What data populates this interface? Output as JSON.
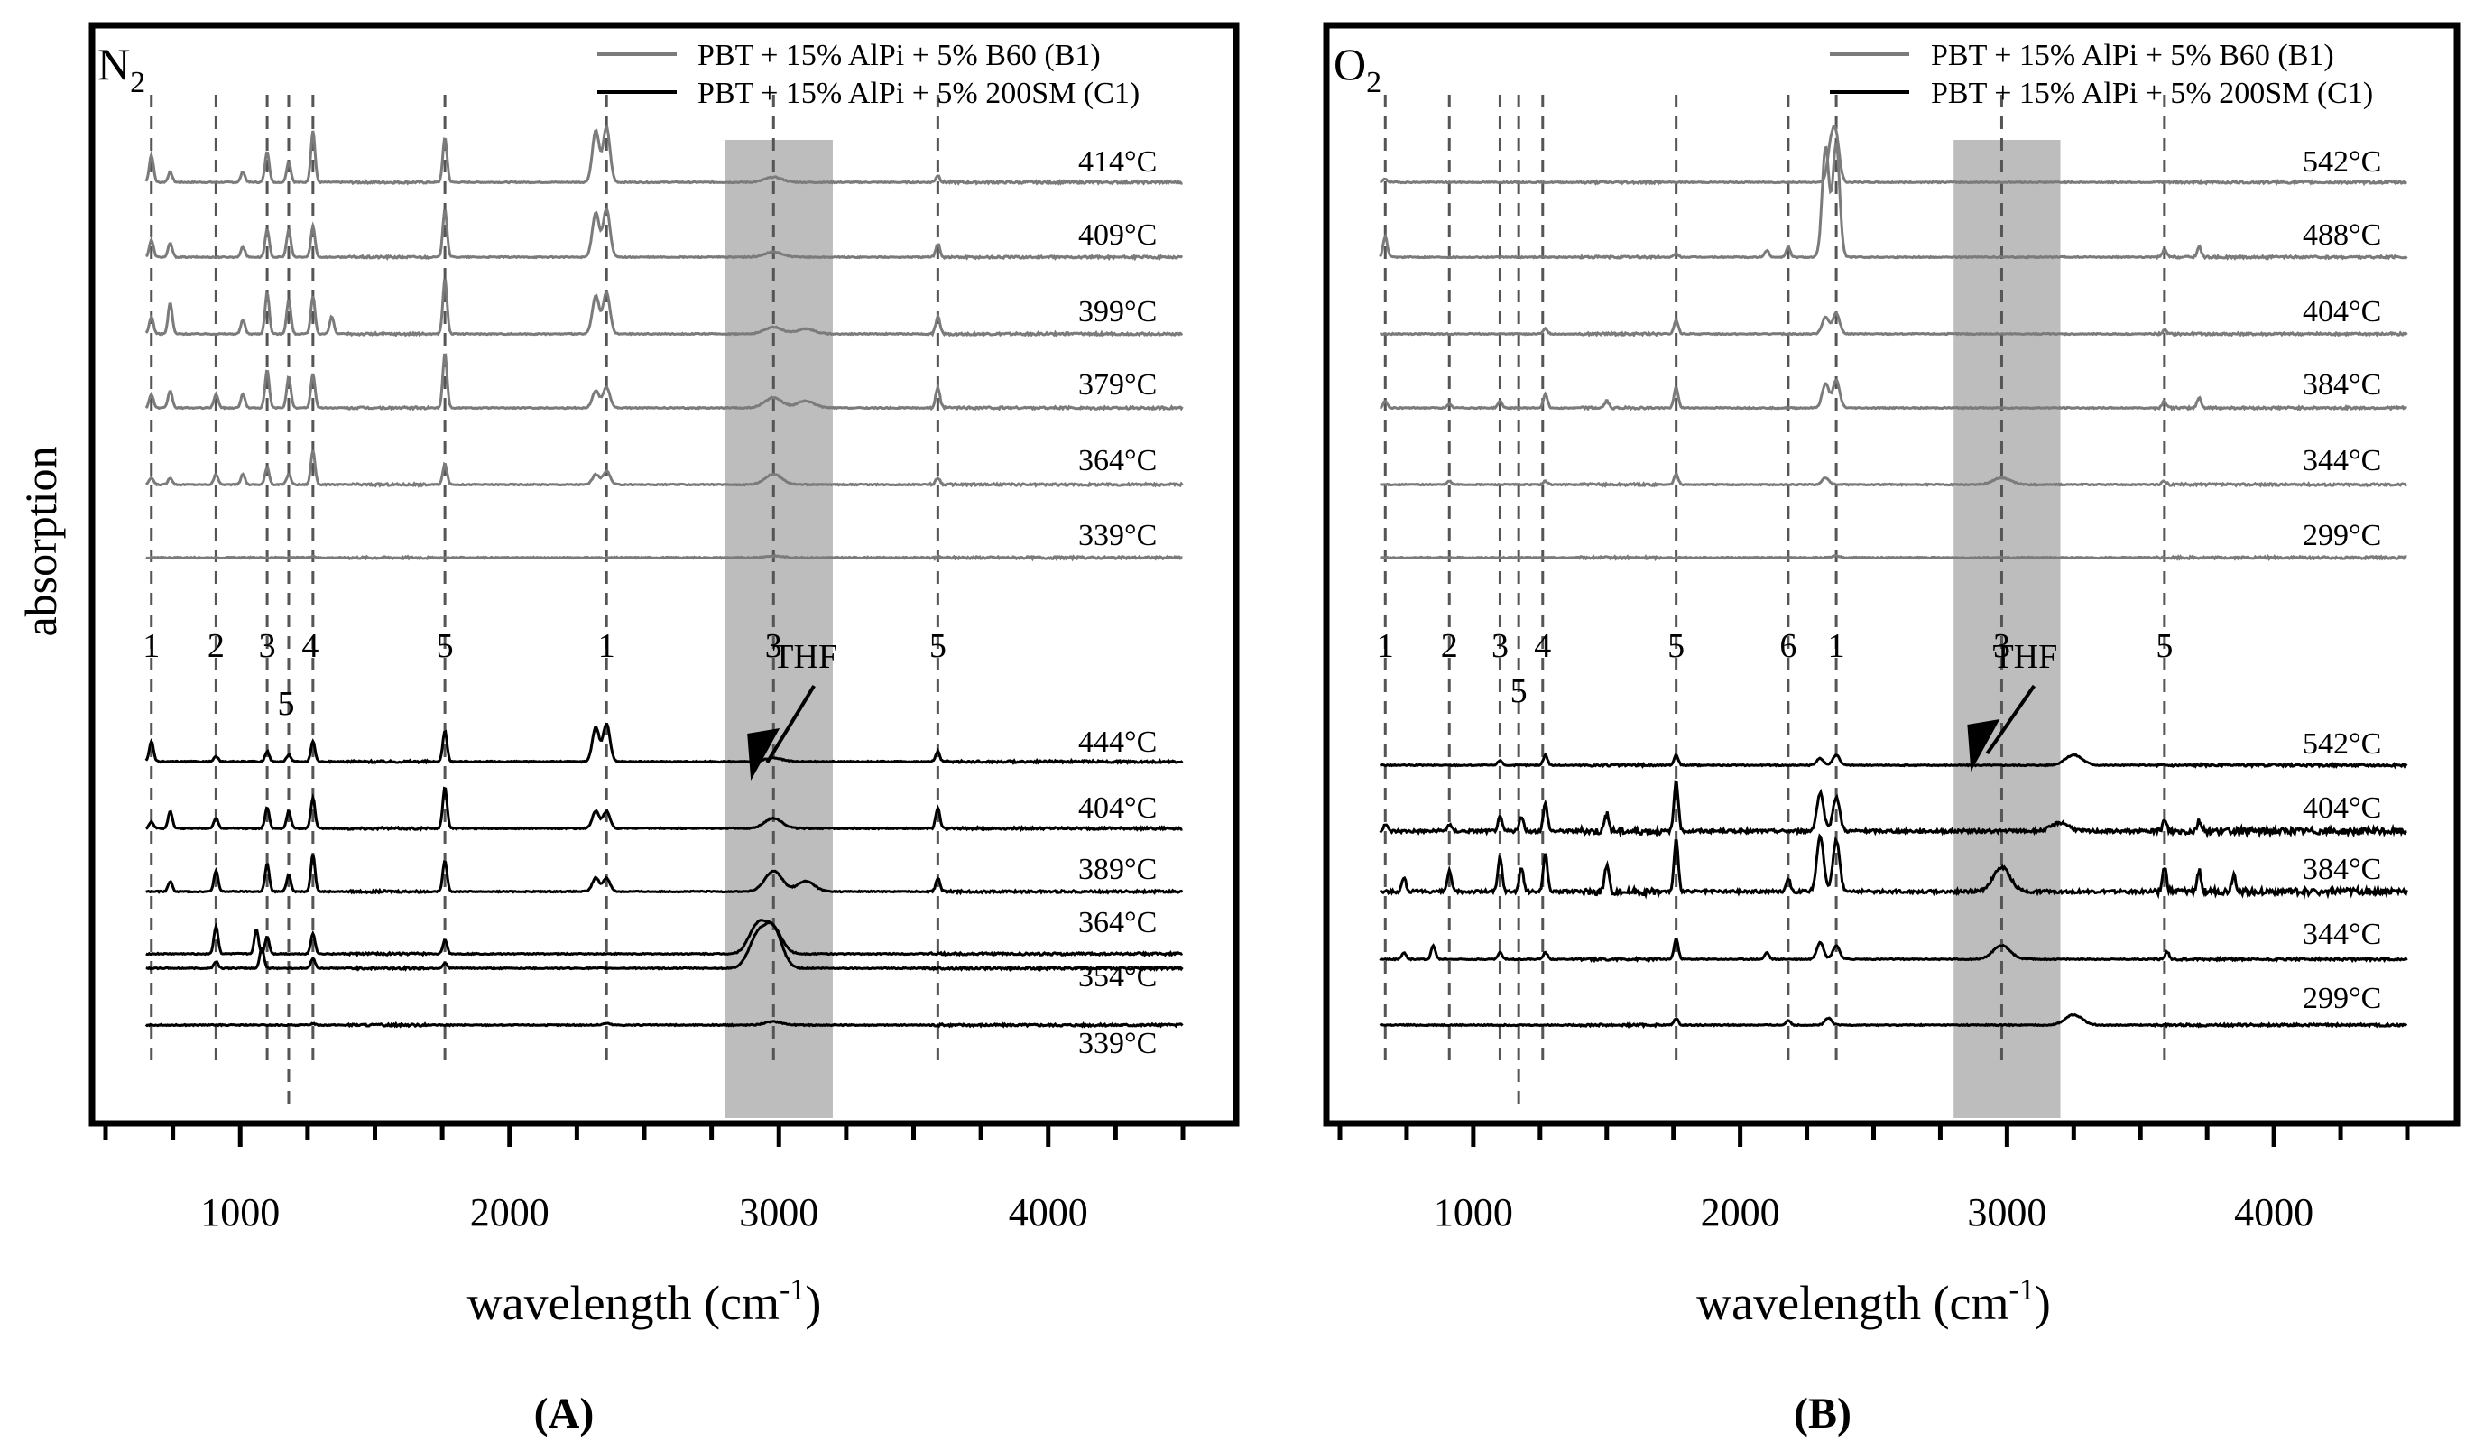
{
  "figure": {
    "ylabel": "absorption",
    "panel_labels": [
      "(A)",
      "(B)"
    ],
    "colors": {
      "b1": "#7b7b7b",
      "c1": "#000000",
      "band": "#bdbdbd",
      "frame": "#000000"
    }
  },
  "chart_data": [
    {
      "type": "line",
      "id": "A",
      "panel_label": "(A)",
      "atmosphere": {
        "main": "N",
        "sub": "2"
      },
      "xlabel": {
        "main": "wavelength (cm",
        "sup": "-1",
        "tail": ")"
      },
      "xlim": [
        500,
        4500
      ],
      "xticks": [
        1000,
        2000,
        3000,
        4000
      ],
      "xtick_labels": [
        "1000",
        "2000",
        "3000",
        "4000"
      ],
      "shaded_band": [
        2800,
        3200
      ],
      "legend": [
        "PBT + 15% AlPi + 5% B60 (B1)",
        "PBT + 15% AlPi + 5% 200SM (C1)"
      ],
      "legend_position": "top-right",
      "reference_lines": [
        670,
        910,
        1100,
        1180,
        1270,
        1760,
        2360,
        2980,
        3590
      ],
      "band_markers": [
        {
          "x": 670,
          "label": "1",
          "row": 1
        },
        {
          "x": 910,
          "label": "2",
          "row": 1
        },
        {
          "x": 1100,
          "label": "3",
          "row": 1
        },
        {
          "x": 1260,
          "label": "4",
          "row": 1
        },
        {
          "x": 1170,
          "label": "5",
          "row": 2
        },
        {
          "x": 1760,
          "label": "5",
          "row": 1
        },
        {
          "x": 2360,
          "label": "1",
          "row": 1
        },
        {
          "x": 2980,
          "label": "3",
          "row": 1
        },
        {
          "x": 3590,
          "label": "5",
          "row": 1
        }
      ],
      "annotation": {
        "text": "THF",
        "x": 3030,
        "ytext": 0.605,
        "yarrow": 0.735
      },
      "series": [
        {
          "group": "B1",
          "label": "414°C",
          "peaks": [
            [
              670,
              0.8
            ],
            [
              740,
              0.3
            ],
            [
              1010,
              0.3
            ],
            [
              1100,
              0.9
            ],
            [
              1180,
              0.6
            ],
            [
              1270,
              1.5
            ],
            [
              1760,
              1.3
            ],
            [
              2320,
              1.5
            ],
            [
              2360,
              1.6
            ],
            [
              2980,
              0.15
            ],
            [
              3590,
              0.2
            ]
          ]
        },
        {
          "group": "B1",
          "label": "409°C",
          "peaks": [
            [
              670,
              0.5
            ],
            [
              740,
              0.4
            ],
            [
              1010,
              0.3
            ],
            [
              1100,
              0.8
            ],
            [
              1180,
              0.8
            ],
            [
              1270,
              0.9
            ],
            [
              1760,
              1.4
            ],
            [
              2320,
              1.3
            ],
            [
              2360,
              1.4
            ],
            [
              2980,
              0.15
            ],
            [
              3590,
              0.4
            ]
          ]
        },
        {
          "group": "B1",
          "label": "399°C",
          "peaks": [
            [
              670,
              0.5
            ],
            [
              740,
              0.9
            ],
            [
              1010,
              0.4
            ],
            [
              1100,
              1.2
            ],
            [
              1180,
              1.0
            ],
            [
              1270,
              1.1
            ],
            [
              1340,
              0.5
            ],
            [
              1760,
              1.6
            ],
            [
              2320,
              1.1
            ],
            [
              2360,
              1.2
            ],
            [
              2980,
              0.2
            ],
            [
              3100,
              0.15
            ],
            [
              3590,
              0.5
            ]
          ]
        },
        {
          "group": "B1",
          "label": "379°C",
          "peaks": [
            [
              670,
              0.4
            ],
            [
              740,
              0.5
            ],
            [
              910,
              0.4
            ],
            [
              1010,
              0.4
            ],
            [
              1100,
              1.1
            ],
            [
              1180,
              0.9
            ],
            [
              1270,
              1.0
            ],
            [
              1760,
              1.6
            ],
            [
              2320,
              0.5
            ],
            [
              2360,
              0.6
            ],
            [
              2980,
              0.3
            ],
            [
              3100,
              0.2
            ],
            [
              3590,
              0.6
            ]
          ]
        },
        {
          "group": "B1",
          "label": "364°C",
          "peaks": [
            [
              670,
              0.2
            ],
            [
              740,
              0.2
            ],
            [
              910,
              0.3
            ],
            [
              1010,
              0.3
            ],
            [
              1100,
              0.5
            ],
            [
              1180,
              0.3
            ],
            [
              1270,
              1.0
            ],
            [
              1760,
              0.6
            ],
            [
              2320,
              0.3
            ],
            [
              2360,
              0.4
            ],
            [
              2980,
              0.3
            ],
            [
              3590,
              0.2
            ]
          ]
        },
        {
          "group": "B1",
          "label": "339°C",
          "peaks": [
            [
              1270,
              0.05
            ],
            [
              2980,
              0.05
            ]
          ]
        },
        {
          "group": "C1",
          "label": "444°C",
          "peaks": [
            [
              670,
              0.6
            ],
            [
              910,
              0.15
            ],
            [
              1100,
              0.3
            ],
            [
              1180,
              0.2
            ],
            [
              1270,
              0.6
            ],
            [
              1760,
              0.9
            ],
            [
              2320,
              1.0
            ],
            [
              2360,
              1.1
            ],
            [
              2980,
              0.1
            ],
            [
              3590,
              0.3
            ]
          ]
        },
        {
          "group": "C1",
          "label": "404°C",
          "peaks": [
            [
              670,
              0.2
            ],
            [
              740,
              0.5
            ],
            [
              910,
              0.3
            ],
            [
              1100,
              0.6
            ],
            [
              1180,
              0.5
            ],
            [
              1270,
              0.9
            ],
            [
              1760,
              1.2
            ],
            [
              2320,
              0.5
            ],
            [
              2360,
              0.5
            ],
            [
              2980,
              0.3
            ],
            [
              3590,
              0.6
            ]
          ]
        },
        {
          "group": "C1",
          "label": "389°C",
          "peaks": [
            [
              740,
              0.3
            ],
            [
              910,
              0.6
            ],
            [
              1100,
              0.8
            ],
            [
              1180,
              0.5
            ],
            [
              1270,
              1.1
            ],
            [
              1760,
              0.9
            ],
            [
              2320,
              0.4
            ],
            [
              2360,
              0.4
            ],
            [
              2980,
              0.6
            ],
            [
              3100,
              0.3
            ],
            [
              3590,
              0.4
            ]
          ]
        },
        {
          "group": "C1",
          "label": "364°C",
          "peaks": [
            [
              910,
              0.8
            ],
            [
              1060,
              0.7
            ],
            [
              1100,
              0.5
            ],
            [
              1270,
              0.6
            ],
            [
              1760,
              0.4
            ],
            [
              2920,
              0.8
            ],
            [
              2980,
              0.7
            ]
          ]
        },
        {
          "group": "C1",
          "label": "354°C",
          "peaks": [
            [
              910,
              0.2
            ],
            [
              1080,
              0.6
            ],
            [
              1270,
              0.3
            ],
            [
              1760,
              0.15
            ],
            [
              2920,
              0.9
            ],
            [
              2980,
              1.1
            ]
          ]
        },
        {
          "group": "C1",
          "label": "339°C",
          "peaks": [
            [
              1270,
              0.05
            ],
            [
              2360,
              0.05
            ],
            [
              2980,
              0.1
            ]
          ]
        }
      ]
    },
    {
      "type": "line",
      "id": "B",
      "panel_label": "(B)",
      "atmosphere": {
        "main": "O",
        "sub": "2"
      },
      "xlabel": {
        "main": "wavelength (cm",
        "sup": "-1",
        "tail": ")"
      },
      "xlim": [
        500,
        4500
      ],
      "xticks": [
        1000,
        2000,
        3000,
        4000
      ],
      "xtick_labels": [
        "1000",
        "2000",
        "3000",
        "4000"
      ],
      "shaded_band": [
        2800,
        3200
      ],
      "legend": [
        "PBT + 15% AlPi + 5% B60 (B1)",
        "PBT + 15% AlPi + 5% 200SM (C1)"
      ],
      "legend_position": "top-right",
      "reference_lines": [
        670,
        910,
        1100,
        1170,
        1260,
        1760,
        2180,
        2360,
        2980,
        3590
      ],
      "band_markers": [
        {
          "x": 670,
          "label": "1",
          "row": 1
        },
        {
          "x": 910,
          "label": "2",
          "row": 1
        },
        {
          "x": 1100,
          "label": "3",
          "row": 1
        },
        {
          "x": 1260,
          "label": "4",
          "row": 1
        },
        {
          "x": 1170,
          "label": "5",
          "row": 2
        },
        {
          "x": 1760,
          "label": "5",
          "row": 1
        },
        {
          "x": 2180,
          "label": "6",
          "row": 1
        },
        {
          "x": 2360,
          "label": "1",
          "row": 1
        },
        {
          "x": 2980,
          "label": "3",
          "row": 1
        },
        {
          "x": 3590,
          "label": "5",
          "row": 1
        }
      ],
      "annotation": {
        "text": "THF",
        "x": 3000,
        "ytext": 0.605,
        "yarrow": 0.725
      },
      "series": [
        {
          "group": "B1",
          "label": "542°C",
          "peaks": [
            [
              670,
              0.1
            ],
            [
              2340,
              1.0
            ],
            [
              2360,
              1.2
            ]
          ]
        },
        {
          "group": "B1",
          "label": "488°C",
          "peaks": [
            [
              670,
              0.6
            ],
            [
              1760,
              0.1
            ],
            [
              2100,
              0.2
            ],
            [
              2180,
              0.3
            ],
            [
              2320,
              3.2
            ],
            [
              2360,
              3.3
            ],
            [
              3590,
              0.2
            ],
            [
              3720,
              0.3
            ]
          ]
        },
        {
          "group": "B1",
          "label": "404°C",
          "peaks": [
            [
              1270,
              0.15
            ],
            [
              1760,
              0.4
            ],
            [
              2320,
              0.5
            ],
            [
              2360,
              0.6
            ],
            [
              3590,
              0.1
            ]
          ]
        },
        {
          "group": "B1",
          "label": "384°C",
          "peaks": [
            [
              670,
              0.2
            ],
            [
              910,
              0.1
            ],
            [
              1100,
              0.2
            ],
            [
              1270,
              0.4
            ],
            [
              1500,
              0.2
            ],
            [
              1760,
              0.6
            ],
            [
              2320,
              0.7
            ],
            [
              2360,
              0.8
            ],
            [
              3590,
              0.2
            ],
            [
              3720,
              0.3
            ]
          ]
        },
        {
          "group": "B1",
          "label": "344°C",
          "peaks": [
            [
              910,
              0.1
            ],
            [
              1270,
              0.1
            ],
            [
              1760,
              0.3
            ],
            [
              2320,
              0.2
            ],
            [
              2980,
              0.2
            ],
            [
              3590,
              0.1
            ]
          ]
        },
        {
          "group": "B1",
          "label": "299°C",
          "peaks": [
            [
              2360,
              0.05
            ]
          ]
        },
        {
          "group": "C1",
          "label": "542°C",
          "peaks": [
            [
              1100,
              0.15
            ],
            [
              1270,
              0.3
            ],
            [
              1760,
              0.3
            ],
            [
              2300,
              0.2
            ],
            [
              2360,
              0.3
            ],
            [
              3250,
              0.3
            ]
          ]
        },
        {
          "group": "C1",
          "label": "404°C",
          "peaks": [
            [
              670,
              0.2
            ],
            [
              910,
              0.2
            ],
            [
              1100,
              0.4
            ],
            [
              1180,
              0.4
            ],
            [
              1270,
              0.8
            ],
            [
              1500,
              0.5
            ],
            [
              1760,
              1.5
            ],
            [
              2300,
              1.1
            ],
            [
              2360,
              1.0
            ],
            [
              3200,
              0.25
            ],
            [
              3590,
              0.3
            ],
            [
              3720,
              0.3
            ]
          ]
        },
        {
          "group": "C1",
          "label": "384°C",
          "peaks": [
            [
              740,
              0.4
            ],
            [
              910,
              0.6
            ],
            [
              1100,
              1.0
            ],
            [
              1180,
              0.7
            ],
            [
              1270,
              1.1
            ],
            [
              1500,
              0.8
            ],
            [
              1760,
              1.5
            ],
            [
              2180,
              0.4
            ],
            [
              2300,
              1.6
            ],
            [
              2360,
              1.5
            ],
            [
              2980,
              0.7
            ],
            [
              3590,
              0.7
            ],
            [
              3720,
              0.6
            ],
            [
              3850,
              0.5
            ]
          ]
        },
        {
          "group": "C1",
          "label": "344°C",
          "peaks": [
            [
              740,
              0.2
            ],
            [
              850,
              0.4
            ],
            [
              1100,
              0.2
            ],
            [
              1270,
              0.2
            ],
            [
              1760,
              0.6
            ],
            [
              2100,
              0.2
            ],
            [
              2300,
              0.5
            ],
            [
              2360,
              0.4
            ],
            [
              2980,
              0.4
            ],
            [
              3600,
              0.2
            ]
          ]
        },
        {
          "group": "C1",
          "label": "299°C",
          "peaks": [
            [
              1760,
              0.2
            ],
            [
              2180,
              0.15
            ],
            [
              2330,
              0.2
            ],
            [
              3250,
              0.3
            ]
          ]
        }
      ]
    }
  ]
}
